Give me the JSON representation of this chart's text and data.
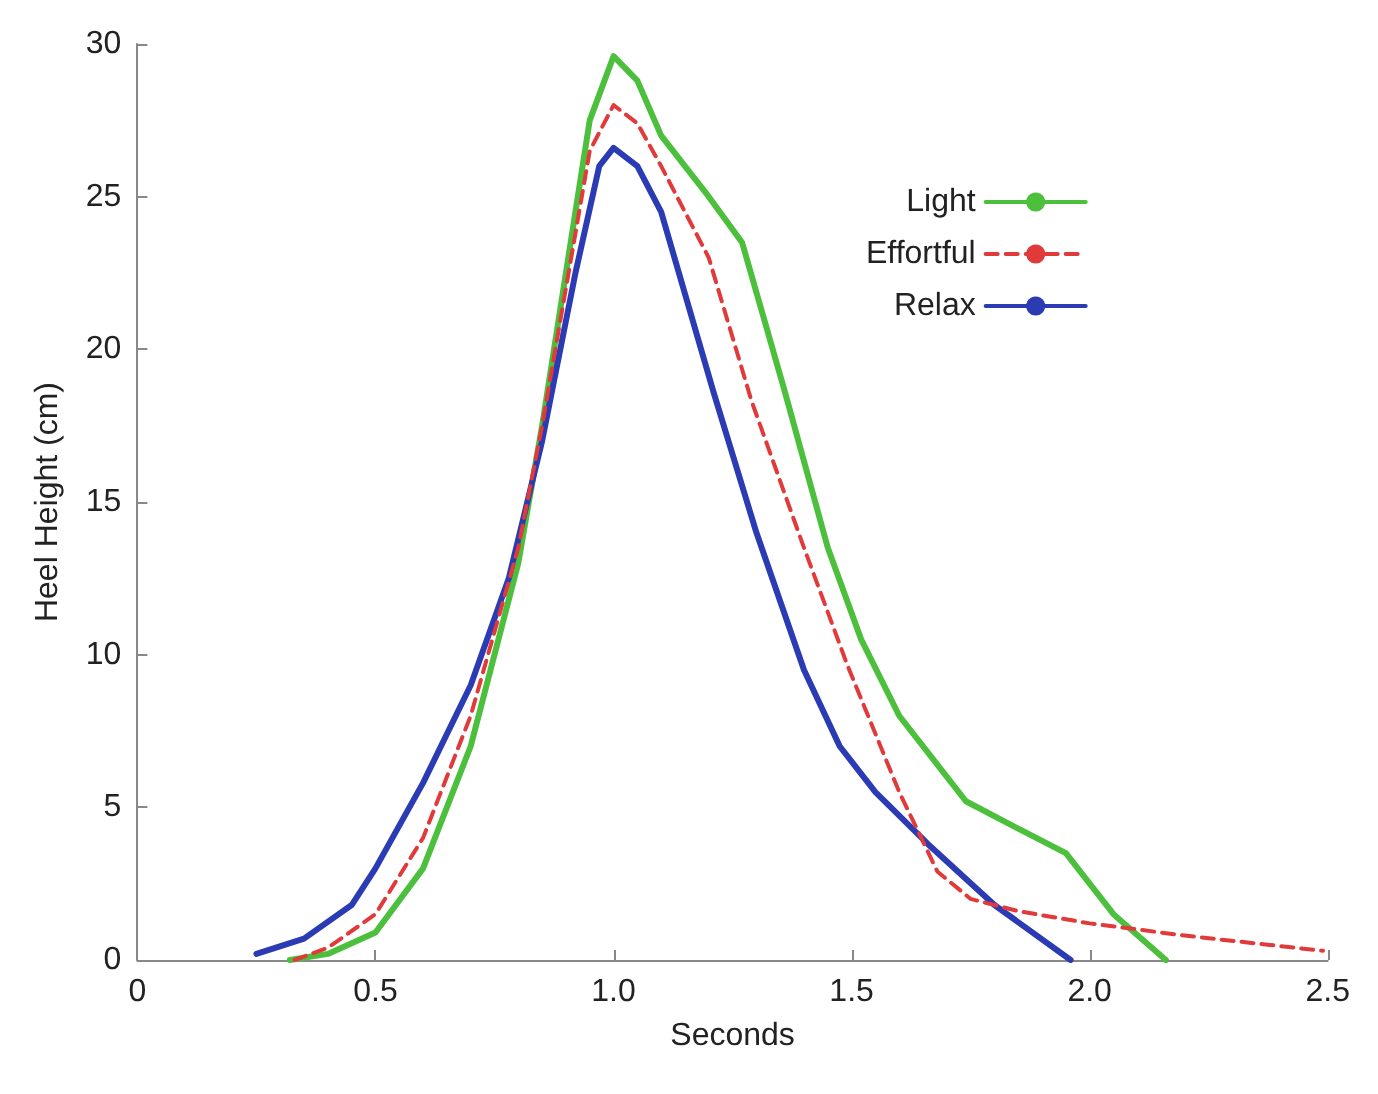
{
  "chart_data": {
    "type": "line",
    "xlabel": "Seconds",
    "ylabel": "Heel Height (cm)",
    "xlim": [
      0,
      2.5
    ],
    "xticks": [
      0,
      0.5,
      {
        "value": 1,
        "label": "1.0"
      },
      1.5,
      {
        "value": 2,
        "label": "2.0"
      },
      2.5
    ],
    "ylim": [
      0,
      30
    ],
    "yticks": [
      0,
      5,
      10,
      15,
      20,
      25,
      30
    ],
    "grid": false,
    "legend": "top right",
    "marker": "none",
    "series": [
      {
        "name": "Light",
        "color": "#4cbf3c",
        "line_style": "solid",
        "x": [
          0.32,
          0.4,
          0.5,
          0.6,
          0.7,
          0.8,
          0.85,
          0.9,
          0.95,
          1.0,
          1.05,
          1.1,
          1.2,
          1.27,
          1.36,
          1.45,
          1.52,
          1.6,
          1.74,
          1.85,
          1.95,
          2.05,
          2.16
        ],
        "values": [
          0,
          0.2,
          0.9,
          3,
          7,
          13,
          17.5,
          22.5,
          27.5,
          29.6,
          28.8,
          27,
          25,
          23.5,
          18.6,
          13.5,
          10.5,
          8,
          5.2,
          4.3,
          3.5,
          1.5,
          0
        ]
      },
      {
        "name": "Effortful",
        "color": "#e03a3a",
        "line_style": "dashed",
        "x": [
          0.33,
          0.4,
          0.5,
          0.6,
          0.7,
          0.8,
          0.85,
          0.9,
          0.95,
          1.0,
          1.05,
          1.1,
          1.2,
          1.29,
          1.4,
          1.49,
          1.6,
          1.68,
          1.75,
          1.85,
          2.0,
          2.2,
          2.49
        ],
        "values": [
          0,
          0.4,
          1.5,
          4,
          8,
          13.5,
          17.5,
          22,
          26.5,
          28,
          27.4,
          26,
          23,
          18.3,
          13.5,
          9.7,
          5.5,
          2.9,
          2,
          1.6,
          1.2,
          0.8,
          0.3
        ]
      },
      {
        "name": "Relax",
        "color": "#2b3bb3",
        "line_style": "solid",
        "x": [
          0.25,
          0.35,
          0.45,
          0.5,
          0.6,
          0.7,
          0.78,
          0.85,
          0.92,
          0.97,
          1.0,
          1.05,
          1.1,
          1.21,
          1.3,
          1.4,
          1.475,
          1.55,
          1.66,
          1.8,
          1.96
        ],
        "values": [
          0.2,
          0.7,
          1.8,
          3,
          5.8,
          9,
          12.5,
          17,
          22.5,
          26,
          26.6,
          26,
          24.5,
          18.6,
          14,
          9.5,
          7,
          5.5,
          3.8,
          1.8,
          0
        ]
      }
    ]
  }
}
